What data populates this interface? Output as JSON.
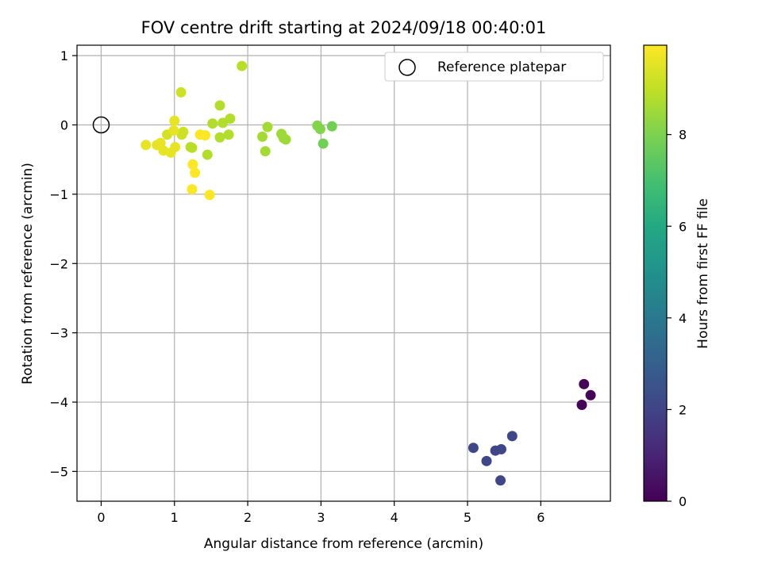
{
  "chart_data": {
    "type": "scatter",
    "title": "FOV centre drift starting at 2024/09/18 00:40:01",
    "xlabel": "Angular distance from reference (arcmin)",
    "ylabel": "Rotation from reference (arcmin)",
    "xlim": [
      -0.33,
      6.95
    ],
    "ylim": [
      -5.43,
      1.15
    ],
    "xticks": [
      0,
      1,
      2,
      3,
      4,
      5,
      6
    ],
    "yticks": [
      1,
      0,
      -1,
      -2,
      -3,
      -4,
      -5
    ],
    "xtick_labels": [
      "0",
      "1",
      "2",
      "3",
      "4",
      "5",
      "6"
    ],
    "ytick_labels": [
      "1",
      "0",
      "−1",
      "−2",
      "−3",
      "−4",
      "−5"
    ],
    "grid": true,
    "legend": {
      "placement": "top-right",
      "entries": [
        "Reference platepar"
      ]
    },
    "reference_point": {
      "x": 0,
      "y": 0
    },
    "colorbar": {
      "label": "Hours from first FF file",
      "colormap": "viridis",
      "range": [
        0,
        9.95
      ],
      "ticks": [
        0,
        2,
        4,
        6,
        8
      ],
      "tick_labels": [
        "0",
        "2",
        "4",
        "6",
        "8"
      ]
    },
    "points": [
      {
        "x": 6.56,
        "y": -4.04,
        "t": 0.05
      },
      {
        "x": 6.59,
        "y": -3.74,
        "t": 0.1
      },
      {
        "x": 6.68,
        "y": -3.9,
        "t": 0.15
      },
      {
        "x": 5.08,
        "y": -4.66,
        "t": 2.1
      },
      {
        "x": 5.26,
        "y": -4.85,
        "t": 2.1
      },
      {
        "x": 5.38,
        "y": -4.7,
        "t": 2.1
      },
      {
        "x": 5.46,
        "y": -4.68,
        "t": 2.1
      },
      {
        "x": 5.61,
        "y": -4.49,
        "t": 2.1
      },
      {
        "x": 5.45,
        "y": -5.13,
        "t": 2.1
      },
      {
        "x": 3.15,
        "y": -0.02,
        "t": 7.8
      },
      {
        "x": 3.03,
        "y": -0.27,
        "t": 7.8
      },
      {
        "x": 2.95,
        "y": -0.01,
        "t": 8.1
      },
      {
        "x": 2.99,
        "y": -0.06,
        "t": 8.1
      },
      {
        "x": 2.46,
        "y": -0.13,
        "t": 8.5
      },
      {
        "x": 2.49,
        "y": -0.19,
        "t": 8.5
      },
      {
        "x": 2.52,
        "y": -0.21,
        "t": 8.5
      },
      {
        "x": 2.27,
        "y": -0.03,
        "t": 8.6
      },
      {
        "x": 2.2,
        "y": -0.17,
        "t": 8.6
      },
      {
        "x": 2.24,
        "y": -0.38,
        "t": 8.6
      },
      {
        "x": 1.92,
        "y": 0.85,
        "t": 8.9
      },
      {
        "x": 1.62,
        "y": 0.28,
        "t": 8.8
      },
      {
        "x": 1.76,
        "y": 0.09,
        "t": 8.8
      },
      {
        "x": 1.66,
        "y": 0.03,
        "t": 8.8
      },
      {
        "x": 1.52,
        "y": 0.02,
        "t": 8.8
      },
      {
        "x": 1.74,
        "y": -0.14,
        "t": 8.8
      },
      {
        "x": 1.62,
        "y": -0.18,
        "t": 8.8
      },
      {
        "x": 1.45,
        "y": -0.43,
        "t": 8.8
      },
      {
        "x": 1.22,
        "y": -0.32,
        "t": 8.9
      },
      {
        "x": 1.24,
        "y": -0.33,
        "t": 8.9
      },
      {
        "x": 1.09,
        "y": 0.47,
        "t": 9.2
      },
      {
        "x": 1.12,
        "y": -0.1,
        "t": 9.2
      },
      {
        "x": 1.1,
        "y": -0.14,
        "t": 9.2
      },
      {
        "x": 0.9,
        "y": -0.14,
        "t": 9.3
      },
      {
        "x": 1.0,
        "y": 0.06,
        "t": 9.6
      },
      {
        "x": 0.99,
        "y": -0.08,
        "t": 9.6
      },
      {
        "x": 0.61,
        "y": -0.29,
        "t": 9.6
      },
      {
        "x": 0.76,
        "y": -0.29,
        "t": 9.6
      },
      {
        "x": 0.81,
        "y": -0.26,
        "t": 9.6
      },
      {
        "x": 0.85,
        "y": -0.37,
        "t": 9.6
      },
      {
        "x": 0.95,
        "y": -0.4,
        "t": 9.6
      },
      {
        "x": 1.01,
        "y": -0.32,
        "t": 9.6
      },
      {
        "x": 1.35,
        "y": -0.14,
        "t": 9.9
      },
      {
        "x": 1.42,
        "y": -0.15,
        "t": 9.9
      },
      {
        "x": 1.25,
        "y": -0.57,
        "t": 9.9
      },
      {
        "x": 1.28,
        "y": -0.69,
        "t": 9.9
      },
      {
        "x": 1.24,
        "y": -0.93,
        "t": 9.9
      },
      {
        "x": 1.48,
        "y": -1.01,
        "t": 9.9
      }
    ]
  }
}
